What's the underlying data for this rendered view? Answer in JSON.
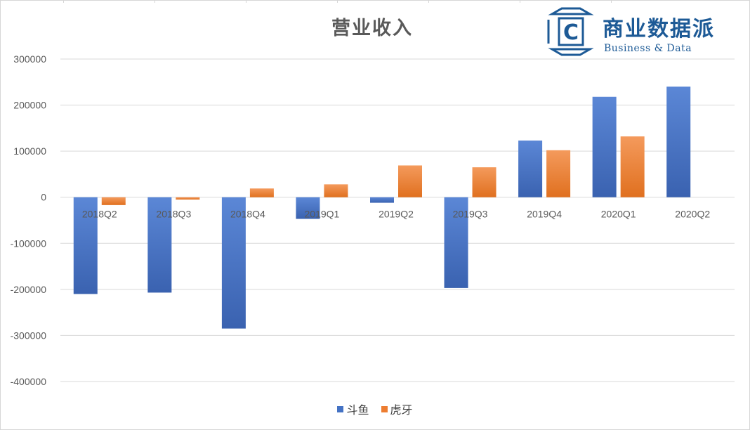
{
  "chart_data": {
    "type": "bar",
    "title": "营业收入",
    "categories": [
      "2018Q2",
      "2018Q3",
      "2018Q4",
      "2019Q1",
      "2019Q2",
      "2019Q3",
      "2019Q4",
      "2020Q1",
      "2020Q2"
    ],
    "series": [
      {
        "name": "斗鱼",
        "color": "#4472c4",
        "values": [
          -210000,
          -207000,
          -285000,
          -47000,
          -12000,
          -197000,
          123000,
          218000,
          240000
        ]
      },
      {
        "name": "虎牙",
        "color": "#ed7d31",
        "values": [
          -17000,
          -5000,
          19000,
          28000,
          69000,
          65000,
          102000,
          132000,
          null
        ]
      }
    ],
    "ylim": [
      -400000,
      300000
    ],
    "yticks": [
      300000,
      200000,
      100000,
      0,
      -100000,
      -200000,
      -300000,
      -400000
    ],
    "ytick_labels": [
      "300000",
      "200000",
      "100000",
      "0",
      "-100000",
      "-200000",
      "-300000",
      "-400000"
    ],
    "grid": true,
    "legend_position": "bottom",
    "xlabel": "",
    "ylabel": ""
  },
  "logo": {
    "name": "商业数据派",
    "tagline": "Business & Data",
    "mark": "C",
    "color": "#1d5a96"
  }
}
